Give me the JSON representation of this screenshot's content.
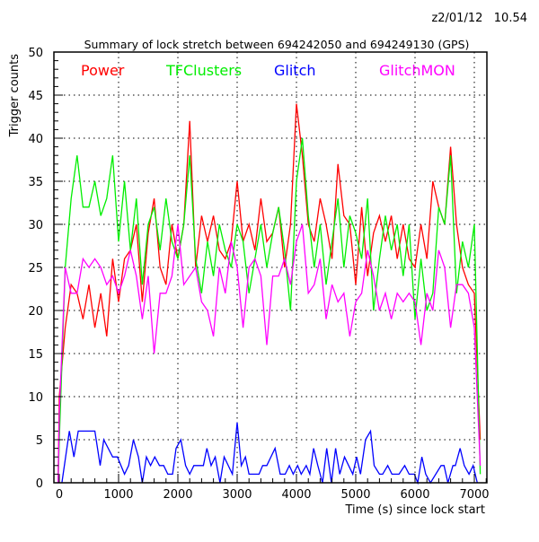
{
  "chart_data": {
    "type": "line",
    "title": "Summary of lock stretch between 694242050 and 694249130 (GPS)",
    "timestamp": "z2/01/12   10.54",
    "xlabel": "Time (s) since lock start",
    "ylabel": "Trigger counts",
    "xlim": [
      -90,
      7210
    ],
    "ylim": [
      0,
      50
    ],
    "xticks": [
      0,
      1000,
      2000,
      3000,
      4000,
      5000,
      6000,
      7000
    ],
    "yticks": [
      0,
      5,
      10,
      15,
      20,
      25,
      30,
      35,
      40,
      45,
      50
    ],
    "grid": true,
    "legend_placement": "top",
    "series": [
      {
        "name": "Power",
        "color": "#ff0000",
        "x": [
          -20,
          0,
          100,
          200,
          300,
          400,
          500,
          600,
          700,
          800,
          900,
          1000,
          1100,
          1200,
          1300,
          1400,
          1500,
          1600,
          1700,
          1800,
          1900,
          2000,
          2100,
          2200,
          2300,
          2400,
          2500,
          2600,
          2700,
          2800,
          2900,
          3000,
          3100,
          3200,
          3300,
          3400,
          3500,
          3600,
          3700,
          3800,
          3900,
          4000,
          4100,
          4200,
          4300,
          4400,
          4500,
          4600,
          4700,
          4800,
          4900,
          5000,
          5100,
          5200,
          5300,
          5400,
          5500,
          5600,
          5700,
          5800,
          5900,
          6000,
          6100,
          6200,
          6300,
          6400,
          6500,
          6600,
          6700,
          6800,
          6900,
          7000,
          7100
        ],
        "y": [
          0,
          10,
          18,
          23,
          22,
          19,
          23,
          18,
          22,
          17,
          26,
          21,
          26,
          27,
          30,
          21,
          29,
          33,
          25,
          23,
          30,
          26,
          30,
          42,
          25,
          31,
          28,
          31,
          27,
          26,
          28,
          35,
          28,
          30,
          27,
          33,
          28,
          29,
          32,
          25,
          30,
          44,
          38,
          30,
          28,
          33,
          30,
          26,
          37,
          31,
          30,
          23,
          32,
          24,
          29,
          31,
          28,
          31,
          26,
          30,
          26,
          25,
          30,
          26,
          35,
          32,
          30,
          39,
          30,
          25,
          23,
          22,
          5
        ]
      },
      {
        "name": "TFClusters",
        "color": "#00ee00",
        "x": [
          -20,
          0,
          100,
          200,
          300,
          400,
          500,
          600,
          700,
          800,
          900,
          1000,
          1100,
          1200,
          1300,
          1400,
          1500,
          1600,
          1700,
          1800,
          1900,
          2000,
          2100,
          2200,
          2300,
          2400,
          2500,
          2600,
          2700,
          2800,
          2900,
          3000,
          3100,
          3200,
          3300,
          3400,
          3500,
          3600,
          3700,
          3800,
          3900,
          4000,
          4100,
          4200,
          4300,
          4400,
          4500,
          4600,
          4700,
          4800,
          4900,
          5000,
          5100,
          5200,
          5300,
          5400,
          5500,
          5600,
          5700,
          5800,
          5900,
          6000,
          6100,
          6200,
          6300,
          6400,
          6500,
          6600,
          6700,
          6800,
          6900,
          7000,
          7100
        ],
        "y": [
          0,
          5,
          25,
          33,
          38,
          32,
          32,
          35,
          31,
          33,
          38,
          28,
          35,
          27,
          33,
          23,
          30,
          32,
          27,
          33,
          28,
          26,
          30,
          38,
          26,
          22,
          28,
          24,
          30,
          27,
          25,
          30,
          28,
          22,
          26,
          30,
          25,
          29,
          32,
          27,
          20,
          35,
          40,
          31,
          25,
          30,
          23,
          28,
          33,
          25,
          31,
          29,
          26,
          33,
          20,
          26,
          31,
          27,
          30,
          24,
          30,
          19,
          26,
          20,
          22,
          32,
          30,
          38,
          22,
          28,
          25,
          30,
          1
        ]
      },
      {
        "name": "Glitch",
        "color": "#0000ff",
        "x": [
          44,
          170,
          247,
          320,
          600,
          690,
          750,
          900,
          980,
          1100,
          1170,
          1250,
          1335,
          1400,
          1470,
          1540,
          1610,
          1690,
          1760,
          1830,
          1910,
          1970,
          2050,
          2130,
          2200,
          2270,
          2430,
          2490,
          2560,
          2630,
          2710,
          2780,
          2920,
          3000,
          3070,
          3140,
          3200,
          3370,
          3430,
          3500,
          3640,
          3725,
          3810,
          3880,
          3945,
          4020,
          4080,
          4165,
          4225,
          4290,
          4360,
          4440,
          4510,
          4590,
          4660,
          4730,
          4810,
          4880,
          4950,
          5015,
          5080,
          5165,
          5250,
          5310,
          5400,
          5455,
          5540,
          5610,
          5730,
          5825,
          5900,
          5990,
          6045,
          6115,
          6180,
          6260,
          6440,
          6490,
          6555,
          6640,
          6680,
          6760,
          6830,
          6910,
          6980,
          7050
        ],
        "y": [
          0,
          6,
          3,
          6,
          6,
          2,
          5,
          3,
          3,
          1,
          2,
          5,
          3,
          0,
          3,
          2,
          3,
          2,
          2,
          1,
          1,
          4,
          5,
          2,
          1,
          2,
          2,
          4,
          2,
          3,
          0,
          3,
          1,
          7,
          2,
          3,
          1,
          1,
          2,
          2,
          4,
          1,
          1,
          2,
          1,
          2,
          1,
          2,
          1,
          4,
          2,
          0,
          4,
          0,
          4,
          1,
          3,
          2,
          1,
          3,
          1,
          5,
          6,
          2,
          1,
          1,
          2,
          1,
          1,
          2,
          1,
          1,
          0,
          3,
          1,
          0,
          2,
          2,
          0,
          2,
          2,
          4,
          2,
          1,
          2,
          0
        ]
      },
      {
        "name": "GlitchMON",
        "color": "#ff00ff",
        "x": [
          -20,
          0,
          100,
          200,
          300,
          400,
          500,
          600,
          700,
          800,
          900,
          1000,
          1100,
          1200,
          1300,
          1400,
          1500,
          1600,
          1700,
          1800,
          1900,
          2000,
          2100,
          2200,
          2300,
          2400,
          2500,
          2600,
          2700,
          2800,
          2900,
          3000,
          3100,
          3200,
          3300,
          3400,
          3500,
          3600,
          3700,
          3800,
          3900,
          4000,
          4100,
          4200,
          4300,
          4400,
          4500,
          4600,
          4700,
          4800,
          4900,
          5000,
          5100,
          5200,
          5300,
          5400,
          5500,
          5600,
          5700,
          5800,
          5900,
          6000,
          6100,
          6200,
          6300,
          6400,
          6500,
          6600,
          6700,
          6800,
          6900,
          7000,
          7100
        ],
        "y": [
          0,
          8,
          25,
          22,
          22,
          26,
          25,
          26,
          25,
          23,
          24,
          22,
          24,
          27,
          24,
          19,
          24,
          15,
          22,
          22,
          24,
          30,
          23,
          24,
          25,
          21,
          20,
          17,
          25,
          22,
          28,
          25,
          18,
          25,
          26,
          24,
          16,
          24,
          24,
          26,
          23,
          28,
          30,
          22,
          23,
          26,
          19,
          23,
          21,
          22,
          17,
          21,
          22,
          27,
          24,
          20,
          22,
          19,
          22,
          21,
          22,
          21,
          16,
          22,
          20,
          27,
          25,
          18,
          23,
          23,
          22,
          18,
          2
        ]
      }
    ]
  }
}
